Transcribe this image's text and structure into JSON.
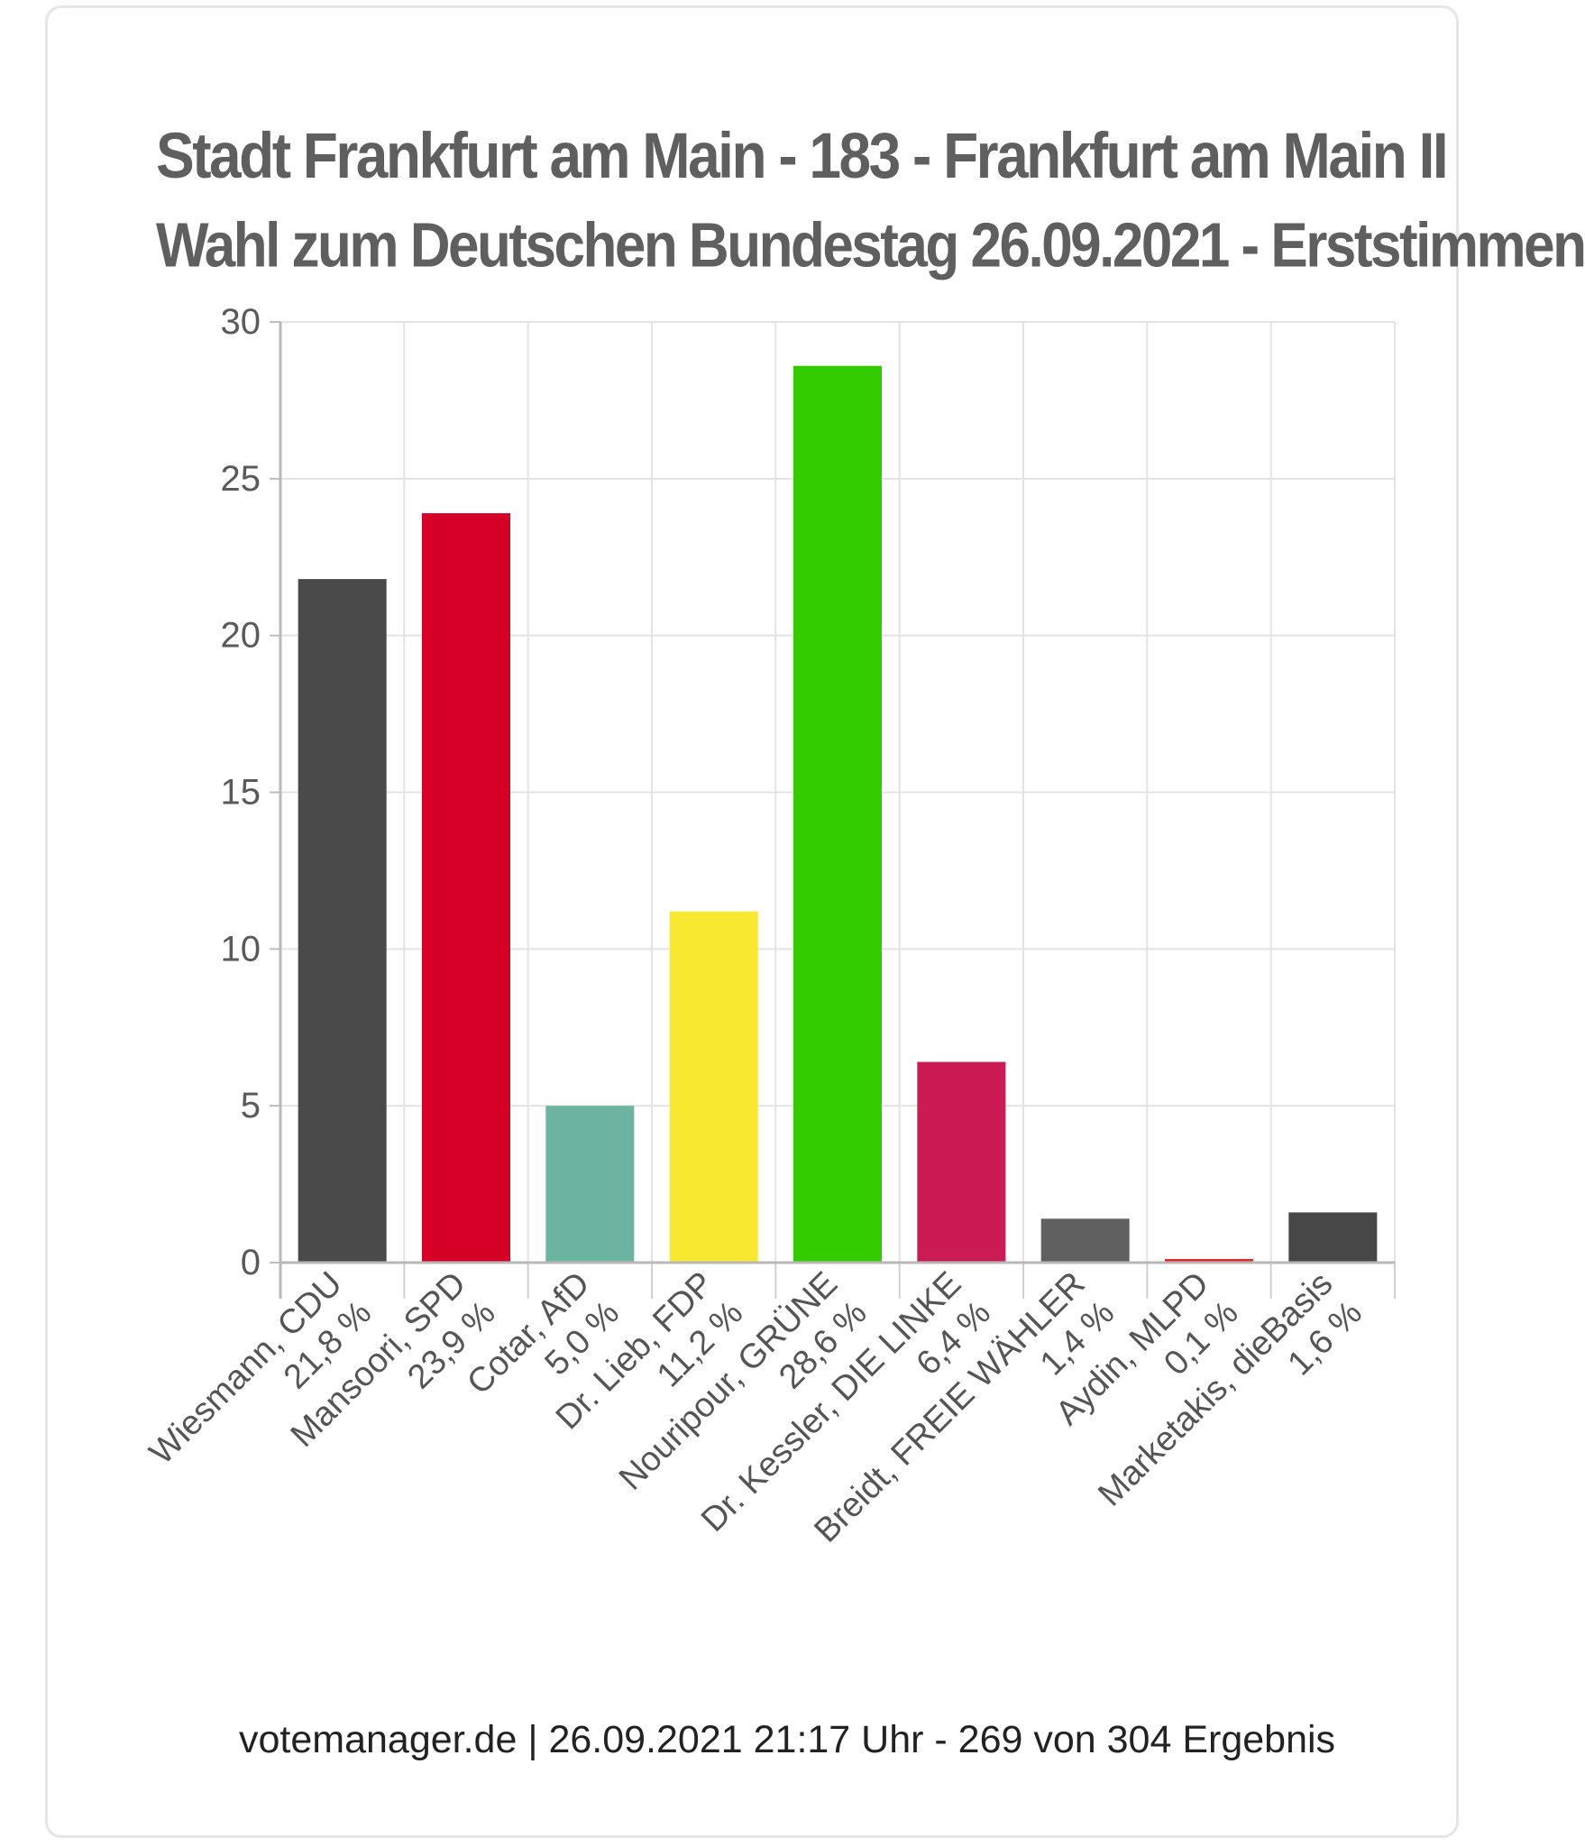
{
  "chart_data": {
    "type": "bar",
    "title": "Stadt Frankfurt am Main - 183 - Frankfurt am Main II",
    "subtitle": "Wahl zum Deutschen Bundestag 26.09.2021  - Erststimmen",
    "xlabel": "",
    "ylabel": "",
    "ylim": [
      0,
      30
    ],
    "yticks": [
      "0",
      "5",
      "10",
      "15",
      "20",
      "25",
      "30"
    ],
    "grid": true,
    "legend": "none",
    "categories": [
      "Wiesmann, CDU",
      "Mansoori, SPD",
      "Cotar, AfD",
      "Dr. Lieb, FDP",
      "Nouripour, GRÜNE",
      "Dr. Kessler, DIE LINKE",
      "Breidt, FREIE WÄHLER",
      "Aydin, MLPD",
      "Marketakis, dieBasis"
    ],
    "value_labels": [
      "21,8 %",
      "23,9 %",
      "5,0 %",
      "11,2 %",
      "28,6 %",
      "6,4 %",
      "1,4 %",
      "0,1 %",
      "1,6 %"
    ],
    "values": [
      21.8,
      23.9,
      5.0,
      11.2,
      28.6,
      6.4,
      1.4,
      0.1,
      1.6
    ],
    "colors": [
      "#4a4a4a",
      "#d60027",
      "#6cb3a2",
      "#f9e830",
      "#33cc00",
      "#cc1a55",
      "#606060",
      "#e52a2a",
      "#474747"
    ]
  },
  "footer": "votemanager.de | 26.09.2021 21:17 Uhr - 269 von 304 Ergebnis"
}
